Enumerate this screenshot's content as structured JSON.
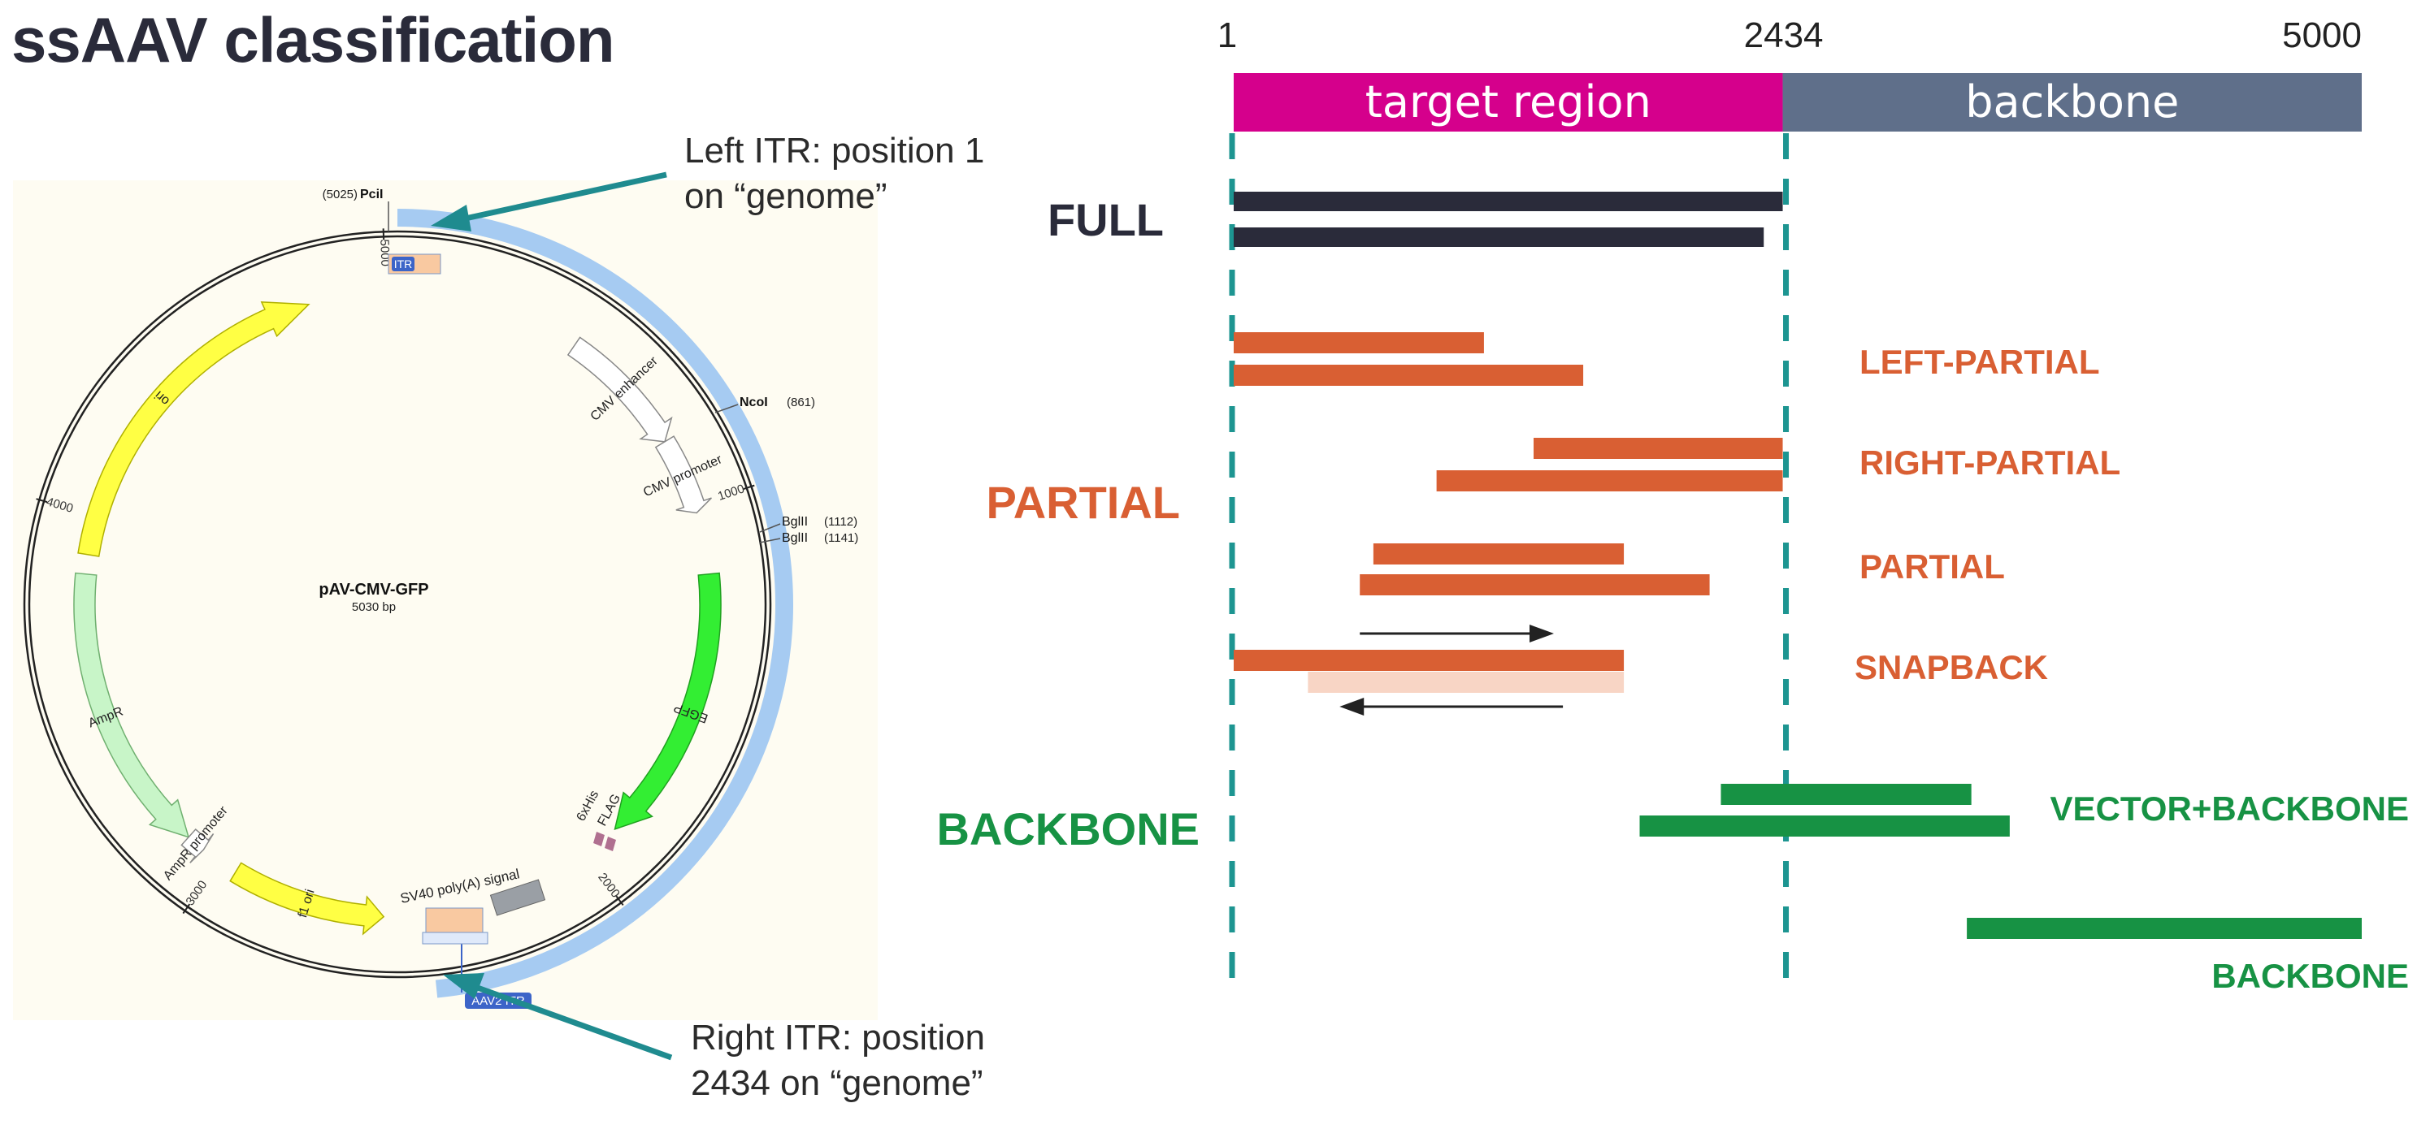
{
  "title": "ssAAV classification",
  "colors": {
    "dark": "#2a2b3a",
    "partial": "#d95f33",
    "snapback_light": "#f8d5c5",
    "backbone_green": "#179244",
    "target": "#d5008c",
    "backbone_grey": "#5f6f8a",
    "dashed": "#1d9591",
    "ring_blue": "#a6cbf2"
  },
  "plasmid": {
    "name": "pAV-CMV-GFP",
    "size": "5030 bp",
    "total_bp": 5030,
    "ticks": [
      {
        "label": "1000",
        "bp": 1000
      },
      {
        "label": "2000",
        "bp": 2000
      },
      {
        "label": "3000",
        "bp": 3000
      },
      {
        "label": "4000",
        "bp": 4000
      },
      {
        "label": "5000",
        "bp": 5000
      }
    ],
    "sites": [
      {
        "name": "PciI",
        "pos": "(5025)",
        "bp": 5025
      },
      {
        "name": "NcoI",
        "pos": "(861)",
        "bp": 861
      },
      {
        "name": "BglII",
        "pos": "(1112)",
        "bp": 1112
      },
      {
        "name": "BglII",
        "pos": "(1141)",
        "bp": 1141
      }
    ],
    "features": [
      {
        "label": "ori",
        "start": 3900,
        "end": 4800,
        "dir": 1,
        "color": "#ffff44",
        "stroke": "#b0b000"
      },
      {
        "label": "CMV enhancer",
        "start": 480,
        "end": 820,
        "dir": 1,
        "color": "#ffffff",
        "stroke": "#888888"
      },
      {
        "label": "CMV promoter",
        "start": 820,
        "end": 1020,
        "dir": 1,
        "color": "#ffffff",
        "stroke": "#888888"
      },
      {
        "label": "EGFP",
        "start": 1180,
        "end": 1900,
        "dir": 1,
        "color": "#33ee33",
        "stroke": "#20a020"
      },
      {
        "label": "AmpR",
        "start": 3100,
        "end": 3850,
        "dir": -1,
        "color": "#c8f5c8",
        "stroke": "#70b070"
      },
      {
        "label": "AmpR promoter",
        "start": 3050,
        "end": 3100,
        "dir": -1,
        "color": "#ffffff",
        "stroke": "#888888"
      },
      {
        "label": "f1 ori",
        "start": 2550,
        "end": 2950,
        "dir": -1,
        "color": "#ffff44",
        "stroke": "#b0b000"
      }
    ],
    "small_features": [
      {
        "label": "6xHis",
        "bp": 1950
      },
      {
        "label": "FLAG",
        "bp": 1935
      },
      {
        "label": "SV40 poly(A) signal",
        "bp": 2320
      }
    ],
    "itr_left_label": "ITR",
    "itr_right_label": "AAV2 ITR"
  },
  "callouts": {
    "left_itr": [
      "Left ITR: position 1",
      "on “genome”"
    ],
    "right_itr": [
      "Right ITR: position",
      "2434 on “genome”"
    ]
  },
  "schema": {
    "axis": {
      "min": 1,
      "max": 5000,
      "boundary": 2434,
      "tick_labels": [
        {
          "label": "1",
          "value": 1
        },
        {
          "label": "2434",
          "value": 2434
        },
        {
          "label": "5000",
          "value": 5000
        }
      ]
    },
    "header_bars": [
      {
        "label": "target region",
        "start": 1,
        "end": 2434,
        "color": "#d5008c"
      },
      {
        "label": "backbone",
        "start": 2434,
        "end": 5000,
        "color": "#5f6f8a"
      }
    ],
    "groups": [
      {
        "label": "FULL",
        "color": "#2a2b3a"
      },
      {
        "label": "PARTIAL",
        "color": "#d95f33"
      },
      {
        "label": "BACKBONE",
        "color": "#179244"
      }
    ],
    "sublabels": [
      {
        "label": "LEFT-PARTIAL",
        "color": "#d95f33"
      },
      {
        "label": "RIGHT-PARTIAL",
        "color": "#d95f33"
      },
      {
        "label": "PARTIAL",
        "color": "#d95f33"
      },
      {
        "label": "SNAPBACK",
        "color": "#d95f33"
      },
      {
        "label": "VECTOR+BACKBONE",
        "color": "#179244"
      },
      {
        "label": "BACKBONE",
        "color": "#179244"
      }
    ],
    "reads": [
      {
        "category": "FULL",
        "start": 1,
        "end": 2434
      },
      {
        "category": "FULL",
        "start": 1,
        "end": 2350
      },
      {
        "category": "LEFT-PARTIAL",
        "start": 1,
        "end": 1110
      },
      {
        "category": "LEFT-PARTIAL",
        "start": 1,
        "end": 1550
      },
      {
        "category": "RIGHT-PARTIAL",
        "start": 1330,
        "end": 2434
      },
      {
        "category": "RIGHT-PARTIAL",
        "start": 900,
        "end": 2434
      },
      {
        "category": "PARTIAL",
        "start": 620,
        "end": 1730
      },
      {
        "category": "PARTIAL",
        "start": 560,
        "end": 2110
      },
      {
        "category": "SNAPBACK",
        "start": 1,
        "end": 1730
      },
      {
        "category": "SNAPBACK-REVERSE",
        "start": 330,
        "end": 1730
      },
      {
        "category": "VECTOR+BACKBONE",
        "start": 2160,
        "end": 3270
      },
      {
        "category": "VECTOR+BACKBONE",
        "start": 1800,
        "end": 3440
      },
      {
        "category": "BACKBONE",
        "start": 3250,
        "end": 5000
      }
    ],
    "snapback_arrows": [
      {
        "from": 560,
        "to": 1420
      },
      {
        "from": 1460,
        "to": 470
      }
    ]
  }
}
